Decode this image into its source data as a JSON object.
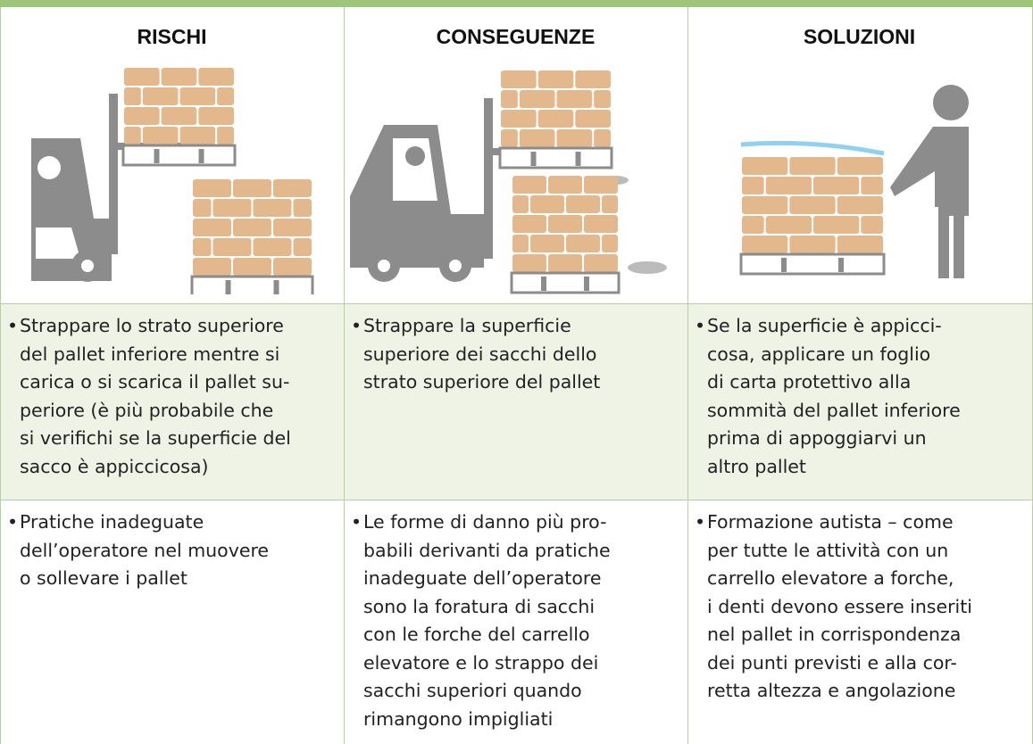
{
  "header": [
    "RISCHI",
    "CONSEGUENZE",
    "SOLUZIONI"
  ],
  "rows": [
    [
      [
        "Strappare lo strato superiore",
        "del pallet inferiore mentre si",
        "carica o si scarica il pallet su-",
        "periore (è più probabile che",
        "si verifichi se la superficie del",
        "sacco è appiccicosa)"
      ],
      [
        "Strappare la superficie",
        "superiore dei sacchi dello",
        "strato superiore del pallet"
      ],
      [
        "Se la superficie è appicci-",
        "cosa, applicare un foglio",
        "di carta protettivo alla",
        "sommità del pallet inferiore",
        "prima di appoggiarvi un",
        "altro pallet"
      ]
    ],
    [
      [
        "Pratiche inadeguate",
        "dell’operatore nel muovere",
        "o sollevare i pallet"
      ],
      [
        "Le forme di danno più pro-",
        "babili derivanti da pratiche",
        "inadeguate dell’operatore",
        "sono la foratura di sacchi",
        "con le forche del carrello",
        "elevatore e lo strappo dei",
        "sacchi superiori quando",
        "rimangono impigliati"
      ],
      [
        "Formazione autista – come",
        "per tutte le attività con un",
        "carrello elevatore a forche,",
        "i denti devono essere inseriti",
        "nel pallet in corrispondenza",
        "dei punti previsti e alla cor-",
        "retta altezza e angolazione"
      ]
    ]
  ]
}
